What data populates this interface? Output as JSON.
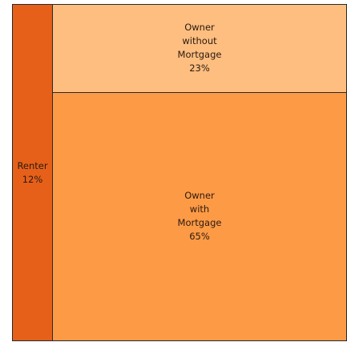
{
  "chart_data": {
    "type": "treemap",
    "categories": [
      "Renter",
      "Owner without Mortgage",
      "Owner with Mortgage"
    ],
    "values": [
      12,
      23,
      65
    ],
    "value_labels": [
      "12%",
      "23%",
      "65%"
    ],
    "colors": [
      "#e6601a",
      "#fdbe80",
      "#fd9a46"
    ]
  }
}
